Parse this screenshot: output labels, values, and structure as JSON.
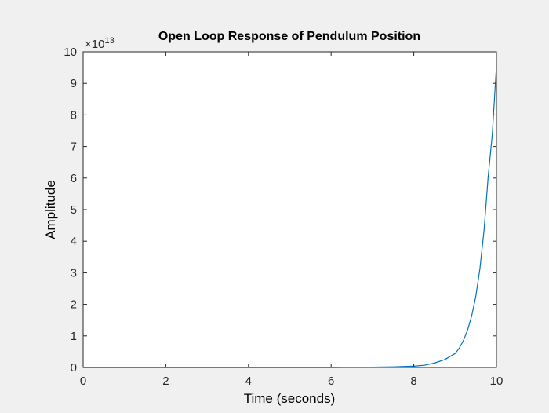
{
  "chart_data": {
    "type": "line",
    "title": "Open Loop Response of Pendulum Position",
    "xlabel": "Time (seconds)",
    "ylabel": "Amplitude",
    "xlim": [
      0,
      10
    ],
    "ylim": [
      0,
      10
    ],
    "y_multiplier": {
      "base": "×10",
      "exponent": "13"
    },
    "xticks": [
      0,
      2,
      4,
      6,
      8,
      10
    ],
    "xtick_labels": [
      "0",
      "2",
      "4",
      "6",
      "8",
      "10"
    ],
    "yticks": [
      0,
      1,
      2,
      3,
      4,
      5,
      6,
      7,
      8,
      9,
      10
    ],
    "ytick_labels": [
      "0",
      "1",
      "2",
      "3",
      "4",
      "5",
      "6",
      "7",
      "8",
      "9",
      "10"
    ],
    "grid": false,
    "series": [
      {
        "color": "#0072bd",
        "x": [
          0,
          1,
          2,
          3,
          4,
          5,
          6,
          7,
          7.5,
          8,
          8.25,
          8.5,
          8.75,
          9,
          9.1,
          9.2,
          9.3,
          9.4,
          9.5,
          9.6,
          9.7,
          9.8,
          9.9,
          10
        ],
        "y": [
          0,
          0,
          0,
          0,
          0,
          0,
          0,
          0.01,
          0.02,
          0.04,
          0.07,
          0.14,
          0.25,
          0.44,
          0.61,
          0.85,
          1.18,
          1.63,
          2.25,
          3.13,
          4.35,
          6.05,
          7.4,
          9.55
        ]
      }
    ]
  },
  "colors": {
    "figure_background": "#f0f0f0",
    "axes_background": "#ffffff",
    "axes_edge": "#262626"
  }
}
